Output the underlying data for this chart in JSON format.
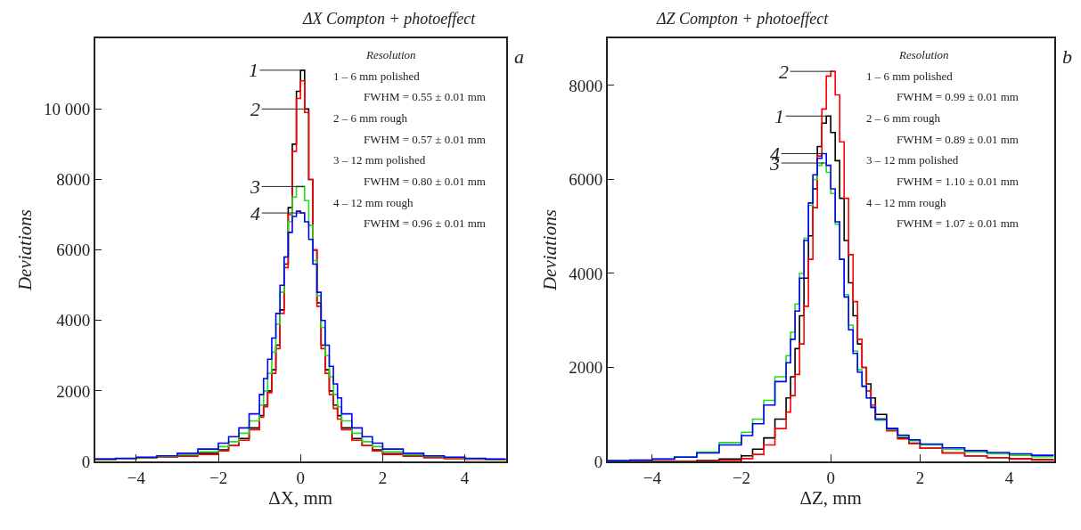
{
  "chart_data": [
    {
      "type": "histogram",
      "title": "ΔX Compton + photoeffect",
      "xlabel": "ΔX, mm",
      "ylabel": "Deviations",
      "bins": [
        -5,
        -4.5,
        -4,
        -3.5,
        -3,
        -2.5,
        -2,
        -1.75,
        -1.5,
        -1.25,
        -1,
        -0.9,
        -0.8,
        -0.7,
        -0.6,
        -0.5,
        -0.4,
        -0.3,
        -0.2,
        -0.1,
        0,
        0.1,
        0.2,
        0.3,
        0.4,
        0.5,
        0.6,
        0.7,
        0.8,
        0.9,
        1,
        1.25,
        1.5,
        1.75,
        2,
        2.5,
        3,
        3.5,
        4,
        4.5,
        5
      ],
      "series": [
        {
          "color": "#000000",
          "values": [
            60,
            80,
            100,
            130,
            170,
            230,
            330,
            450,
            650,
            950,
            1300,
            1600,
            2000,
            2600,
            3300,
            4300,
            5600,
            7200,
            9000,
            10500,
            11100,
            10000,
            8000,
            6000,
            4500,
            3300,
            2600,
            2000,
            1600,
            1300,
            950,
            650,
            450,
            330,
            220,
            160,
            120,
            90,
            70,
            50
          ]
        },
        {
          "color": "#ff0000",
          "values": [
            50,
            70,
            100,
            120,
            150,
            200,
            300,
            450,
            600,
            900,
            1250,
            1550,
            1950,
            2500,
            3200,
            4200,
            5500,
            7000,
            8800,
            10300,
            10800,
            9900,
            8000,
            6000,
            4400,
            3200,
            2500,
            1900,
            1500,
            1200,
            900,
            600,
            450,
            300,
            200,
            150,
            100,
            80,
            60,
            50
          ]
        },
        {
          "color": "#22dd22",
          "values": [
            60,
            80,
            110,
            140,
            190,
            280,
            420,
            560,
            800,
            1150,
            1600,
            2000,
            2500,
            3100,
            3900,
            4800,
            5800,
            6800,
            7500,
            7800,
            7800,
            7400,
            6700,
            5700,
            4700,
            3800,
            3000,
            2400,
            1900,
            1550,
            1150,
            800,
            560,
            420,
            280,
            190,
            140,
            110,
            80,
            60
          ]
        },
        {
          "color": "#0000ff",
          "values": [
            70,
            90,
            120,
            160,
            230,
            350,
            520,
            700,
            950,
            1350,
            1900,
            2350,
            2900,
            3500,
            4200,
            5000,
            5800,
            6500,
            6950,
            7100,
            7050,
            6800,
            6300,
            5600,
            4800,
            4000,
            3300,
            2700,
            2200,
            1800,
            1350,
            950,
            700,
            520,
            350,
            230,
            160,
            120,
            90,
            70
          ]
        }
      ],
      "xlim": [
        -5,
        5
      ],
      "xticks": [
        -4,
        -2,
        0,
        2,
        4
      ],
      "ylim": [
        0,
        12000
      ],
      "yticks": [
        0,
        2000,
        4000,
        6000,
        8000,
        {
          "value": 10000,
          "label": "10 000"
        }
      ],
      "annotations": [
        "a",
        "Resolution",
        "1 – 6 mm polished",
        "FWHM = 0.55 ± 0.01 mm",
        "2 – 6 mm rough",
        "FWHM = 0.57 ± 0.01 mm",
        "3 – 12 mm polished",
        "FWHM = 0.80 ± 0.01 mm",
        "4 – 12 mm rough",
        "FWHM = 0.96 ± 0.01 mm",
        {
          "text": "1",
          "x": 0.05,
          "y": 11100
        },
        {
          "text": "2",
          "x": 0.1,
          "y": 10000
        },
        {
          "text": "3",
          "x": 0.1,
          "y": 7800
        },
        {
          "text": "4",
          "x": 0.1,
          "y": 7050
        }
      ]
    },
    {
      "type": "histogram",
      "title": "ΔZ Compton + photoeffect",
      "xlabel": "ΔZ, mm",
      "ylabel": "Deviations",
      "bins": [
        -5,
        -4.5,
        -4,
        -3.5,
        -3,
        -2.5,
        -2,
        -1.75,
        -1.5,
        -1.25,
        -1,
        -0.9,
        -0.8,
        -0.7,
        -0.6,
        -0.5,
        -0.4,
        -0.3,
        -0.2,
        -0.1,
        0,
        0.1,
        0.2,
        0.3,
        0.4,
        0.5,
        0.6,
        0.7,
        0.8,
        0.9,
        1,
        1.25,
        1.5,
        1.75,
        2,
        2.5,
        3,
        3.5,
        4,
        4.5,
        5
      ],
      "series": [
        {
          "color": "#000000",
          "values": [
            0,
            0,
            0,
            0,
            20,
            50,
            120,
            260,
            500,
            900,
            1350,
            1800,
            2400,
            3100,
            3900,
            4800,
            5800,
            6700,
            7200,
            7350,
            7000,
            6400,
            5600,
            4700,
            3800,
            3100,
            2500,
            2000,
            1650,
            1350,
            1000,
            700,
            500,
            390,
            280,
            180,
            120,
            80,
            55,
            35
          ]
        },
        {
          "color": "#ff0000",
          "values": [
            0,
            0,
            0,
            0,
            0,
            20,
            60,
            150,
            350,
            700,
            1050,
            1400,
            1850,
            2500,
            3300,
            4300,
            5400,
            6500,
            7500,
            8200,
            8300,
            7800,
            6800,
            5600,
            4400,
            3400,
            2600,
            2000,
            1500,
            1200,
            900,
            650,
            480,
            380,
            280,
            180,
            120,
            80,
            50,
            30
          ]
        },
        {
          "color": "#22dd22",
          "values": [
            20,
            30,
            50,
            100,
            200,
            400,
            620,
            900,
            1300,
            1800,
            2250,
            2750,
            3350,
            4000,
            4750,
            5450,
            6000,
            6300,
            6350,
            6150,
            5700,
            5050,
            4300,
            3550,
            2900,
            2350,
            1950,
            1600,
            1350,
            1150,
            880,
            680,
            540,
            440,
            350,
            260,
            200,
            160,
            130,
            100
          ]
        },
        {
          "color": "#0000ff",
          "values": [
            20,
            30,
            50,
            90,
            180,
            350,
            550,
            800,
            1200,
            1700,
            2100,
            2600,
            3200,
            3900,
            4700,
            5500,
            6100,
            6450,
            6550,
            6300,
            5800,
            5100,
            4300,
            3500,
            2800,
            2300,
            1900,
            1600,
            1350,
            1150,
            900,
            700,
            560,
            460,
            370,
            290,
            230,
            190,
            160,
            130
          ]
        }
      ],
      "xlim": [
        -5,
        5
      ],
      "xticks": [
        -4,
        -2,
        0,
        2,
        4
      ],
      "ylim": [
        0,
        9000
      ],
      "yticks": [
        0,
        2000,
        4000,
        6000,
        8000
      ],
      "annotations": [
        "b",
        "Resolution",
        "1 – 6 mm polished",
        "FWHM = 0.99 ± 0.01 mm",
        "2 – 6 mm rough",
        "FWHM = 0.89 ± 0.01 mm",
        "3 – 12 mm polished",
        "FWHM = 1.10 ± 0.01 mm",
        "4 – 12 mm rough",
        "FWHM = 1.07 ± 0.01 mm",
        {
          "text": "1",
          "x": -0.05,
          "y": 7350
        },
        {
          "text": "2",
          "x": 0.05,
          "y": 8300
        },
        {
          "text": "3",
          "x": -0.15,
          "y": 6350
        },
        {
          "text": "4",
          "x": -0.15,
          "y": 6550
        }
      ]
    }
  ]
}
